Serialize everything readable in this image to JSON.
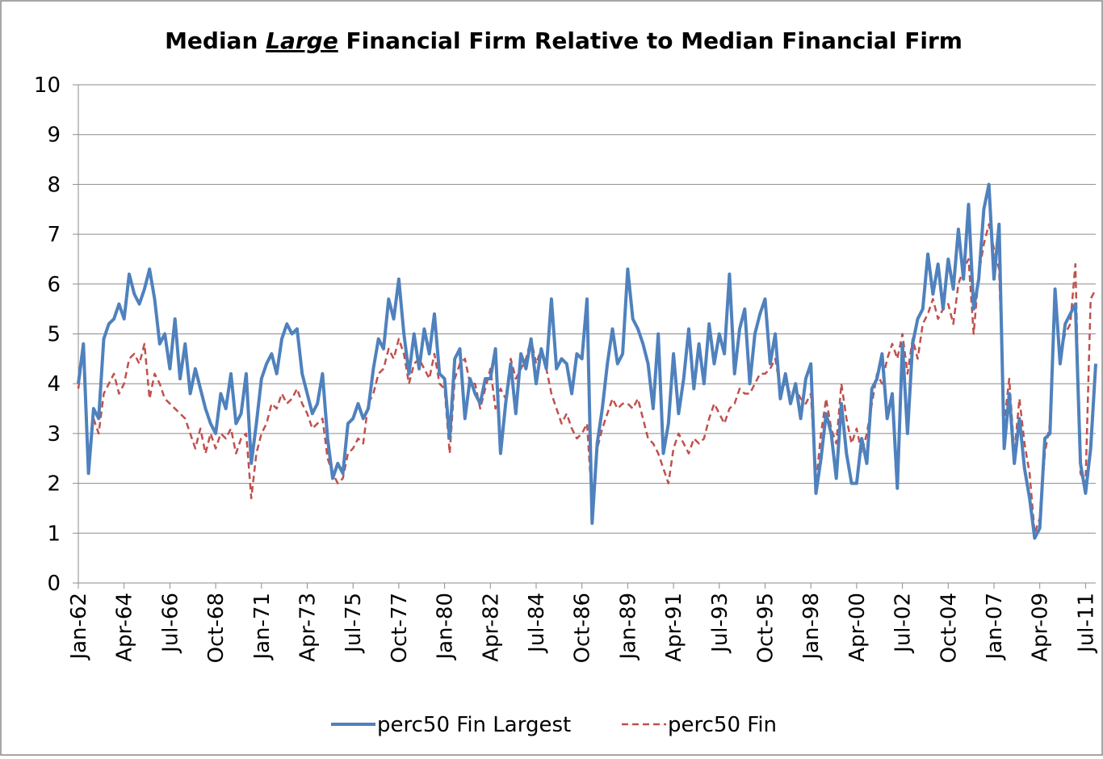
{
  "chart_data": {
    "type": "line",
    "title": "Median",
    "title_emphasis": "Large",
    "title_rest": "Financial Firm Relative to Median Financial Firm",
    "categories": [
      "Jan-62",
      null,
      null,
      null,
      null,
      null,
      null,
      null,
      null,
      "Apr-64",
      null,
      null,
      null,
      null,
      null,
      null,
      null,
      null,
      "Jul-66",
      null,
      null,
      null,
      null,
      null,
      null,
      null,
      null,
      "Oct-68",
      null,
      null,
      null,
      null,
      null,
      null,
      null,
      null,
      "Jan-71",
      null,
      null,
      null,
      null,
      null,
      null,
      null,
      null,
      "Apr-73",
      null,
      null,
      null,
      null,
      null,
      null,
      null,
      null,
      "Jul-75",
      null,
      null,
      null,
      null,
      null,
      null,
      null,
      null,
      "Oct-77",
      null,
      null,
      null,
      null,
      null,
      null,
      null,
      null,
      "Jan-80",
      null,
      null,
      null,
      null,
      null,
      null,
      null,
      null,
      "Apr-82",
      null,
      null,
      null,
      null,
      null,
      null,
      null,
      null,
      "Jul-84",
      null,
      null,
      null,
      null,
      null,
      null,
      null,
      null,
      "Oct-86",
      null,
      null,
      null,
      null,
      null,
      null,
      null,
      null,
      "Jan-89",
      null,
      null,
      null,
      null,
      null,
      null,
      null,
      null,
      "Apr-91",
      null,
      null,
      null,
      null,
      null,
      null,
      null,
      null,
      "Jul-93",
      null,
      null,
      null,
      null,
      null,
      null,
      null,
      null,
      "Oct-95",
      null,
      null,
      null,
      null,
      null,
      null,
      null,
      null,
      "Jan-98",
      null,
      null,
      null,
      null,
      null,
      null,
      null,
      null,
      "Apr-00",
      null,
      null,
      null,
      null,
      null,
      null,
      null,
      null,
      "Jul-02",
      null,
      null,
      null,
      null,
      null,
      null,
      null,
      null,
      "Oct-04",
      null,
      null,
      null,
      null,
      null,
      null,
      null,
      null,
      "Jan-07",
      null,
      null,
      null,
      null,
      null,
      null,
      null,
      null,
      "Apr-09",
      null,
      null,
      null,
      null,
      null,
      null,
      null,
      null,
      "Jul-11",
      null,
      null
    ],
    "series": [
      {
        "name": "perc50 Fin Largest",
        "color": "#4f81bd",
        "dash": false,
        "values": [
          4.0,
          4.8,
          2.2,
          3.5,
          3.3,
          4.9,
          5.2,
          5.3,
          5.6,
          5.3,
          6.2,
          5.8,
          5.6,
          5.9,
          6.3,
          5.7,
          4.8,
          5.0,
          4.3,
          5.3,
          4.1,
          4.8,
          3.8,
          4.3,
          3.9,
          3.5,
          3.2,
          3.0,
          3.8,
          3.5,
          4.2,
          3.2,
          3.4,
          4.2,
          2.4,
          3.2,
          4.1,
          4.4,
          4.6,
          4.2,
          4.9,
          5.2,
          5.0,
          5.1,
          4.2,
          3.8,
          3.4,
          3.6,
          4.2,
          2.9,
          2.1,
          2.4,
          2.2,
          3.2,
          3.3,
          3.6,
          3.3,
          3.5,
          4.3,
          4.9,
          4.7,
          5.7,
          5.3,
          6.1,
          5.0,
          4.2,
          5.0,
          4.3,
          5.1,
          4.6,
          5.4,
          4.2,
          4.1,
          2.9,
          4.5,
          4.7,
          3.3,
          4.1,
          3.8,
          3.6,
          4.1,
          4.1,
          4.7,
          2.6,
          3.6,
          4.4,
          3.4,
          4.6,
          4.3,
          4.9,
          4.0,
          4.7,
          4.3,
          5.7,
          4.3,
          4.5,
          4.4,
          3.8,
          4.6,
          4.5,
          5.7,
          1.2,
          2.8,
          3.5,
          4.4,
          5.1,
          4.4,
          4.6,
          6.3,
          5.3,
          5.1,
          4.8,
          4.4,
          3.5,
          5.0,
          2.6,
          3.2,
          4.6,
          3.4,
          4.1,
          5.1,
          3.9,
          4.8,
          4.0,
          5.2,
          4.4,
          5.0,
          4.6,
          6.2,
          4.2,
          5.1,
          5.5,
          4.0,
          5.0,
          5.4,
          5.7,
          4.4,
          5.0,
          3.7,
          4.2,
          3.6,
          4.0,
          3.3,
          4.1,
          4.4,
          1.8,
          2.5,
          3.4,
          3.0,
          2.1,
          3.6,
          2.6,
          2.0,
          2.0,
          2.9,
          2.4,
          3.9,
          4.1,
          4.6,
          3.3,
          3.8,
          1.9,
          4.8,
          3.0,
          4.8,
          5.3,
          5.5,
          6.6,
          5.8,
          6.4,
          5.5,
          6.5,
          5.9,
          7.1,
          6.1,
          7.6,
          5.5,
          6.1,
          7.5,
          8.0,
          6.1,
          7.2,
          2.7,
          3.8,
          2.4,
          3.3,
          2.3,
          1.7,
          0.9,
          1.1,
          2.9,
          3.0,
          5.9,
          4.4,
          5.2,
          5.4,
          5.6,
          2.4,
          1.8,
          2.7,
          4.4
        ]
      },
      {
        "name": "perc50 Fin",
        "color": "#c0504d",
        "dash": true,
        "values": [
          3.9,
          4.7,
          2.3,
          3.3,
          3.0,
          3.8,
          4.0,
          4.2,
          3.8,
          4.0,
          4.5,
          4.6,
          4.4,
          4.8,
          3.7,
          4.2,
          4.0,
          3.7,
          3.6,
          3.5,
          3.4,
          3.3,
          3.0,
          2.7,
          3.1,
          2.6,
          3.0,
          2.7,
          3.0,
          2.9,
          3.1,
          2.6,
          2.9,
          3.0,
          1.7,
          2.6,
          3.0,
          3.2,
          3.6,
          3.5,
          3.8,
          3.6,
          3.7,
          3.9,
          3.6,
          3.4,
          3.1,
          3.2,
          3.3,
          2.5,
          2.2,
          2.0,
          2.1,
          2.6,
          2.7,
          2.9,
          2.8,
          3.6,
          3.8,
          4.2,
          4.3,
          4.7,
          4.5,
          4.9,
          4.6,
          4.0,
          4.4,
          4.5,
          4.3,
          4.1,
          4.6,
          4.0,
          3.9,
          2.6,
          4.1,
          4.4,
          4.5,
          4.0,
          4.0,
          3.5,
          3.9,
          4.3,
          3.5,
          3.9,
          3.7,
          4.5,
          4.1,
          4.3,
          4.5,
          4.9,
          4.4,
          4.7,
          4.3,
          3.8,
          3.5,
          3.2,
          3.4,
          3.1,
          2.9,
          3.0,
          3.2,
          1.6,
          2.7,
          3.1,
          3.4,
          3.7,
          3.5,
          3.6,
          3.6,
          3.5,
          3.7,
          3.3,
          2.9,
          2.8,
          2.6,
          2.3,
          2.0,
          2.7,
          3.0,
          2.8,
          2.6,
          2.9,
          2.8,
          2.9,
          3.3,
          3.6,
          3.4,
          3.2,
          3.5,
          3.6,
          3.9,
          3.8,
          3.8,
          4.0,
          4.2,
          4.2,
          4.3,
          4.5,
          3.9,
          4.0,
          3.8,
          3.9,
          3.7,
          3.6,
          3.8,
          2.0,
          3.0,
          3.7,
          3.1,
          2.8,
          4.0,
          3.3,
          2.8,
          3.1,
          2.6,
          3.0,
          3.6,
          4.2,
          4.0,
          4.5,
          4.8,
          4.5,
          5.0,
          4.2,
          4.9,
          4.5,
          5.2,
          5.4,
          5.7,
          5.3,
          5.5,
          5.6,
          5.2,
          6.0,
          6.3,
          6.5,
          5.0,
          6.2,
          6.8,
          7.2,
          6.7,
          6.3,
          3.2,
          4.1,
          2.6,
          3.7,
          2.8,
          2.2,
          1.0,
          1.3,
          2.6,
          3.2,
          5.6,
          4.6,
          5.0,
          5.2,
          6.4,
          2.2,
          2.0,
          5.7,
          5.9
        ]
      }
    ],
    "ylim": [
      0,
      10
    ],
    "yticks": [
      0,
      1,
      2,
      3,
      4,
      5,
      6,
      7,
      8,
      9,
      10
    ],
    "grid": true,
    "legend": "bottom"
  }
}
